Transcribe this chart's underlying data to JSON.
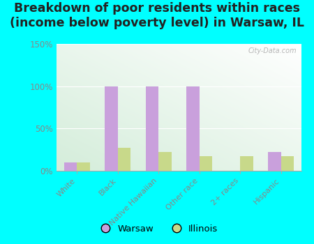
{
  "title": "Breakdown of poor residents within races\n(income below poverty level) in Warsaw, IL",
  "categories": [
    "White",
    "Black",
    "Native Hawaiian",
    "Other race",
    "2+ races",
    "Hispanic"
  ],
  "warsaw_values": [
    10,
    100,
    100,
    100,
    0,
    22
  ],
  "illinois_values": [
    10,
    27,
    22,
    17,
    17,
    17
  ],
  "warsaw_color": "#c9a0dc",
  "illinois_color": "#c8d98a",
  "background_color": "#00ffff",
  "watermark": "City-Data.com",
  "ylim": [
    0,
    150
  ],
  "yticks": [
    0,
    50,
    100,
    150
  ],
  "ytick_labels": [
    "0%",
    "50%",
    "100%",
    "150%"
  ],
  "bar_width": 0.32,
  "legend_labels": [
    "Warsaw",
    "Illinois"
  ],
  "title_fontsize": 12.5,
  "tick_fontsize": 8.5,
  "ytick_color": "#888888",
  "xtick_color": "#888888"
}
